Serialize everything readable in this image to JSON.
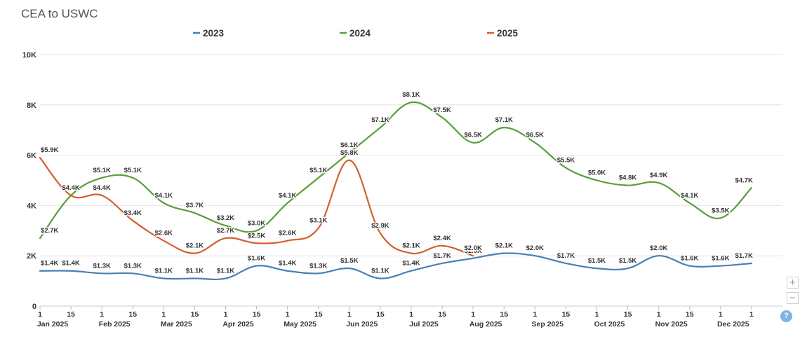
{
  "title": "CEA to USWC",
  "colors": {
    "2023": "#4a7fb0",
    "2024": "#5a9e38",
    "2025": "#d45f2e",
    "grid": "#e4e4e4",
    "text": "#333333"
  },
  "chart_data": {
    "type": "line",
    "title": "CEA to USWC",
    "xlabel": "",
    "ylabel": "",
    "x_domain": [
      0,
      24
    ],
    "ylim": [
      0,
      10000
    ],
    "y_ticks": [
      {
        "value": 0,
        "label": "0"
      },
      {
        "value": 2000,
        "label": "2K"
      },
      {
        "value": 4000,
        "label": "4K"
      },
      {
        "value": 6000,
        "label": "6K"
      },
      {
        "value": 8000,
        "label": "8K"
      },
      {
        "value": 10000,
        "label": "10K"
      }
    ],
    "x_ticks": [
      {
        "t": 0,
        "day": "1",
        "month": "Jan 2025"
      },
      {
        "t": 1,
        "day": "15",
        "month": ""
      },
      {
        "t": 2,
        "day": "1",
        "month": "Feb 2025"
      },
      {
        "t": 3,
        "day": "15",
        "month": ""
      },
      {
        "t": 4,
        "day": "1",
        "month": "Mar 2025"
      },
      {
        "t": 5,
        "day": "15",
        "month": ""
      },
      {
        "t": 6,
        "day": "1",
        "month": "Apr 2025"
      },
      {
        "t": 7,
        "day": "15",
        "month": ""
      },
      {
        "t": 8,
        "day": "1",
        "month": "May 2025"
      },
      {
        "t": 9,
        "day": "15",
        "month": ""
      },
      {
        "t": 10,
        "day": "1",
        "month": "Jun 2025"
      },
      {
        "t": 11,
        "day": "15",
        "month": ""
      },
      {
        "t": 12,
        "day": "1",
        "month": "Jul 2025"
      },
      {
        "t": 13,
        "day": "15",
        "month": ""
      },
      {
        "t": 14,
        "day": "1",
        "month": "Aug 2025"
      },
      {
        "t": 15,
        "day": "15",
        "month": ""
      },
      {
        "t": 16,
        "day": "1",
        "month": "Sep 2025"
      },
      {
        "t": 17,
        "day": "15",
        "month": ""
      },
      {
        "t": 18,
        "day": "1",
        "month": "Oct 2025"
      },
      {
        "t": 19,
        "day": "15",
        "month": ""
      },
      {
        "t": 20,
        "day": "1",
        "month": "Nov 2025"
      },
      {
        "t": 21,
        "day": "15",
        "month": ""
      },
      {
        "t": 22,
        "day": "1",
        "month": "Dec 2025"
      },
      {
        "t": 23,
        "day": "1",
        "month": ""
      }
    ],
    "legend": [
      {
        "name": "2023",
        "color": "#4a7fb0"
      },
      {
        "name": "2024",
        "color": "#5a9e38"
      },
      {
        "name": "2025",
        "color": "#d45f2e"
      }
    ],
    "series": [
      {
        "name": "2023",
        "color": "#4a7fb0",
        "points": [
          {
            "t": 0,
            "y": 1400,
            "label": "$1.4K"
          },
          {
            "t": 1,
            "y": 1400,
            "label": "$1.4K"
          },
          {
            "t": 2,
            "y": 1300,
            "label": "$1.3K"
          },
          {
            "t": 3,
            "y": 1300,
            "label": "$1.3K"
          },
          {
            "t": 4,
            "y": 1100,
            "label": "$1.1K"
          },
          {
            "t": 5,
            "y": 1100,
            "label": "$1.1K"
          },
          {
            "t": 6,
            "y": 1100,
            "label": "$1.1K"
          },
          {
            "t": 7,
            "y": 1600,
            "label": "$1.6K"
          },
          {
            "t": 8,
            "y": 1400,
            "label": "$1.4K"
          },
          {
            "t": 9,
            "y": 1300,
            "label": "$1.3K"
          },
          {
            "t": 10,
            "y": 1500,
            "label": "$1.5K"
          },
          {
            "t": 11,
            "y": 1100,
            "label": "$1.1K"
          },
          {
            "t": 12,
            "y": 1400,
            "label": "$1.4K"
          },
          {
            "t": 13,
            "y": 1700,
            "label": "$1.7K"
          },
          {
            "t": 14,
            "y": 1900,
            "label": "$1.9K"
          },
          {
            "t": 15,
            "y": 2100,
            "label": "$2.1K"
          },
          {
            "t": 16,
            "y": 2000,
            "label": "$2.0K"
          },
          {
            "t": 17,
            "y": 1700,
            "label": "$1.7K"
          },
          {
            "t": 18,
            "y": 1500,
            "label": "$1.5K"
          },
          {
            "t": 19,
            "y": 1500,
            "label": "$1.5K"
          },
          {
            "t": 20,
            "y": 2000,
            "label": "$2.0K"
          },
          {
            "t": 21,
            "y": 1600,
            "label": "$1.6K"
          },
          {
            "t": 22,
            "y": 1600,
            "label": "$1.6K"
          },
          {
            "t": 23,
            "y": 1700,
            "label": "$1.7K"
          }
        ]
      },
      {
        "name": "2024",
        "color": "#5a9e38",
        "points": [
          {
            "t": 0,
            "y": 2700,
            "label": "$2.7K"
          },
          {
            "t": 1,
            "y": 4400,
            "label": "$4.4K"
          },
          {
            "t": 2,
            "y": 5100,
            "label": "$5.1K"
          },
          {
            "t": 3,
            "y": 5100,
            "label": "$5.1K"
          },
          {
            "t": 4,
            "y": 4100,
            "label": "$4.1K"
          },
          {
            "t": 5,
            "y": 3700,
            "label": "$3.7K"
          },
          {
            "t": 6,
            "y": 3200,
            "label": "$3.2K"
          },
          {
            "t": 7,
            "y": 3000,
            "label": "$3.0K"
          },
          {
            "t": 8,
            "y": 4100,
            "label": "$4.1K"
          },
          {
            "t": 9,
            "y": 5100,
            "label": "$5.1K"
          },
          {
            "t": 10,
            "y": 6100,
            "label": "$6.1K"
          },
          {
            "t": 11,
            "y": 7100,
            "label": "$7.1K"
          },
          {
            "t": 12,
            "y": 8100,
            "label": "$8.1K"
          },
          {
            "t": 13,
            "y": 7500,
            "label": "$7.5K"
          },
          {
            "t": 14,
            "y": 6500,
            "label": "$6.5K"
          },
          {
            "t": 15,
            "y": 7100,
            "label": "$7.1K"
          },
          {
            "t": 16,
            "y": 6500,
            "label": "$6.5K"
          },
          {
            "t": 17,
            "y": 5500,
            "label": "$5.5K"
          },
          {
            "t": 18,
            "y": 5000,
            "label": "$5.0K"
          },
          {
            "t": 19,
            "y": 4800,
            "label": "$4.8K"
          },
          {
            "t": 20,
            "y": 4900,
            "label": "$4.9K"
          },
          {
            "t": 21,
            "y": 4100,
            "label": "$4.1K"
          },
          {
            "t": 22,
            "y": 3500,
            "label": "$3.5K"
          },
          {
            "t": 23,
            "y": 4700,
            "label": "$4.7K"
          }
        ]
      },
      {
        "name": "2025",
        "color": "#d45f2e",
        "points": [
          {
            "t": 0,
            "y": 5900,
            "label": "$5.9K"
          },
          {
            "t": 1,
            "y": 4400,
            "label": "$4.4K"
          },
          {
            "t": 2,
            "y": 4400,
            "label": "$4.4K"
          },
          {
            "t": 3,
            "y": 3400,
            "label": "$3.4K"
          },
          {
            "t": 4,
            "y": 2600,
            "label": "$2.6K"
          },
          {
            "t": 5,
            "y": 2100,
            "label": "$2.1K"
          },
          {
            "t": 6,
            "y": 2700,
            "label": "$2.7K"
          },
          {
            "t": 7,
            "y": 2500,
            "label": "$2.5K"
          },
          {
            "t": 8,
            "y": 2600,
            "label": "$2.6K"
          },
          {
            "t": 9,
            "y": 3100,
            "label": "$3.1K"
          },
          {
            "t": 10,
            "y": 5800,
            "label": "$5.8K"
          },
          {
            "t": 11,
            "y": 2900,
            "label": "$2.9K"
          },
          {
            "t": 12,
            "y": 2100,
            "label": "$2.1K"
          },
          {
            "t": 13,
            "y": 2400,
            "label": "$2.4K"
          },
          {
            "t": 14,
            "y": 2000,
            "label": "$2.0K"
          }
        ]
      }
    ]
  },
  "controls": {
    "zoom_in": "+",
    "zoom_out": "−",
    "help": "?"
  }
}
